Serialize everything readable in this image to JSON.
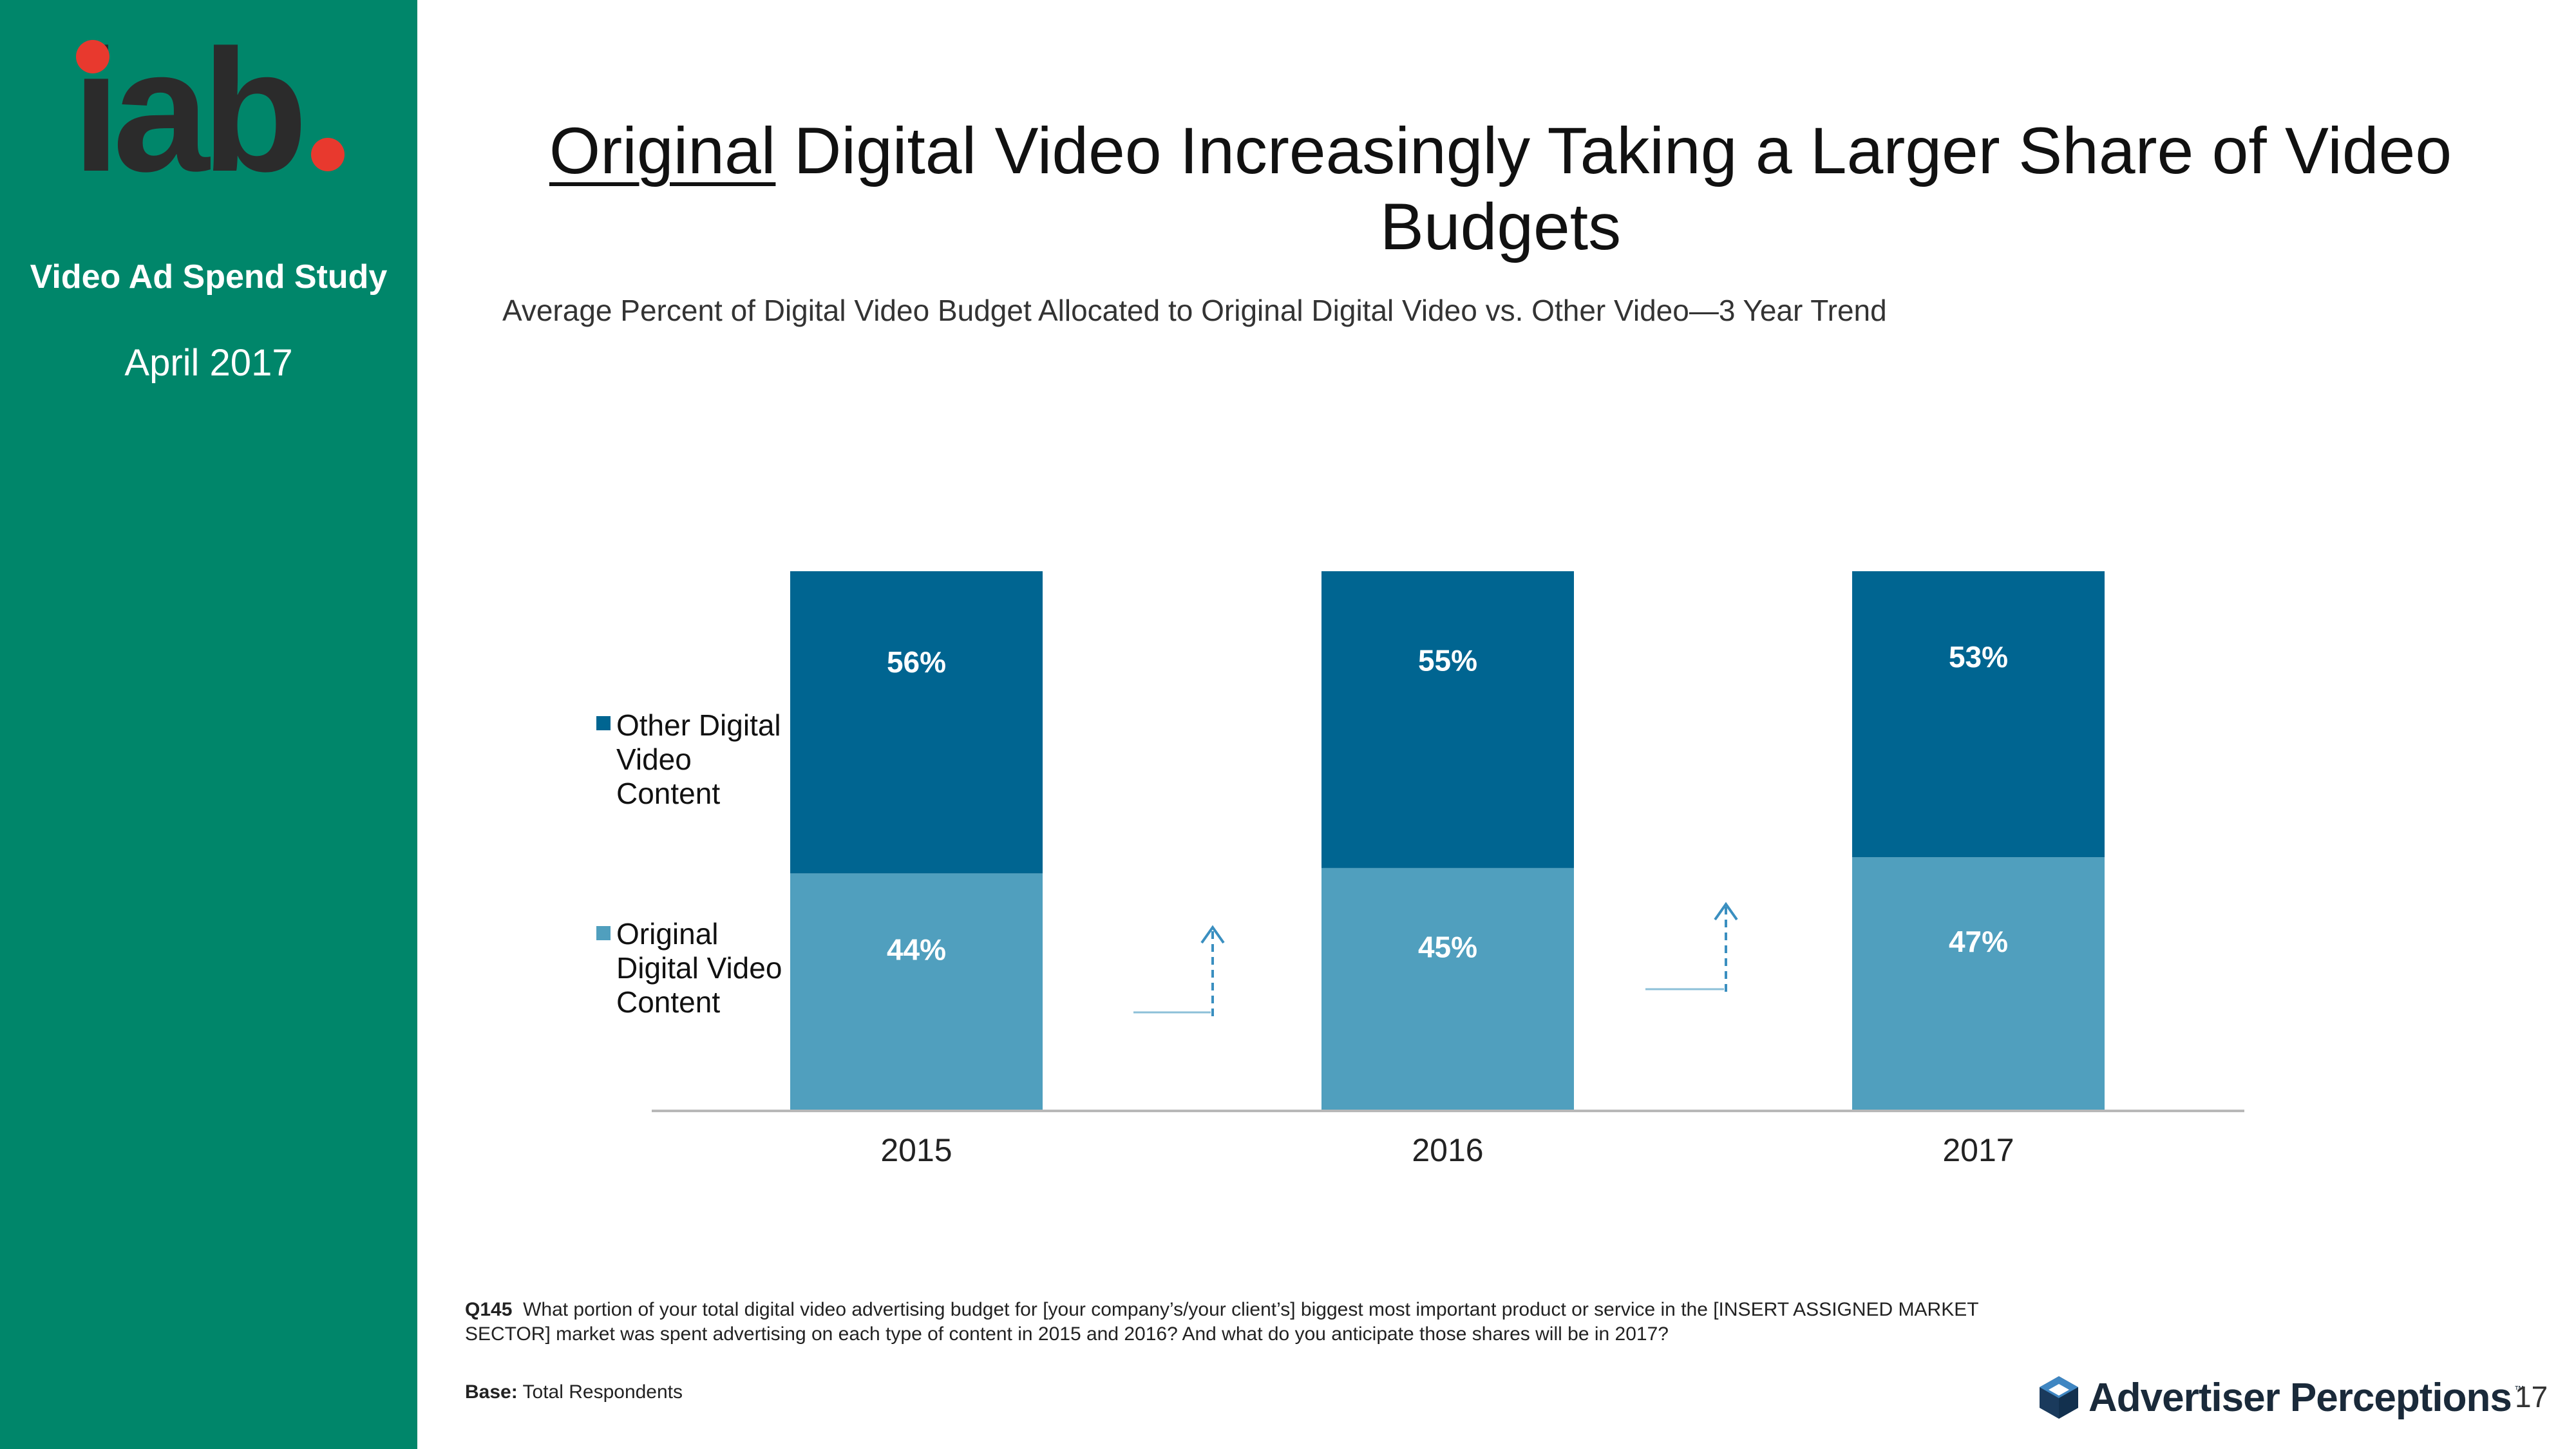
{
  "sidebar": {
    "logo_text": "iab",
    "study_name": "Video Ad Spend Study",
    "study_date": "April 2017"
  },
  "slide": {
    "title_underlined": "Original",
    "title_rest": " Digital Video Increasingly Taking a Larger Share of Video Budgets",
    "subtitle": "Average Percent of Digital Video Budget Allocated to Original Digital Video vs. Other Video—3 Year Trend",
    "footnote_label": "Q145",
    "footnote_text": "What portion of your total digital video advertising budget for [your company’s/your client’s] biggest most important product or service in the [INSERT ASSIGNED MARKET SECTOR] market was spent advertising on each type of content in 2015 and 2016? And what do you anticipate those shares will be in 2017?",
    "base_label": "Base:",
    "base_text": "Total Respondents",
    "brand_name": "Advertiser Perceptions",
    "brand_tm": "™",
    "page_number": "17"
  },
  "colors": {
    "sidebar": "#00866a",
    "other_video": "#006591",
    "original_video": "#509fbe",
    "logo_dot": "#e8392e",
    "logo_text": "#2b2b2b"
  },
  "chart_data": {
    "type": "bar",
    "stacked": true,
    "categories": [
      "2015",
      "2016",
      "2017"
    ],
    "series": [
      {
        "name": "Original Digital Video Content",
        "values": [
          44,
          45,
          47
        ],
        "labels": [
          "44%",
          "45%",
          "47%"
        ],
        "color": "#509fbe"
      },
      {
        "name": "Other Digital Video Content",
        "values": [
          56,
          55,
          53
        ],
        "labels": [
          "56%",
          "55%",
          "53%"
        ],
        "color": "#006591"
      }
    ],
    "ylim": [
      0,
      100
    ],
    "legend_position": "left",
    "grid": false,
    "annotations": [
      "upward arrow between 2015 and 2016",
      "upward arrow between 2016 and 2017"
    ]
  }
}
